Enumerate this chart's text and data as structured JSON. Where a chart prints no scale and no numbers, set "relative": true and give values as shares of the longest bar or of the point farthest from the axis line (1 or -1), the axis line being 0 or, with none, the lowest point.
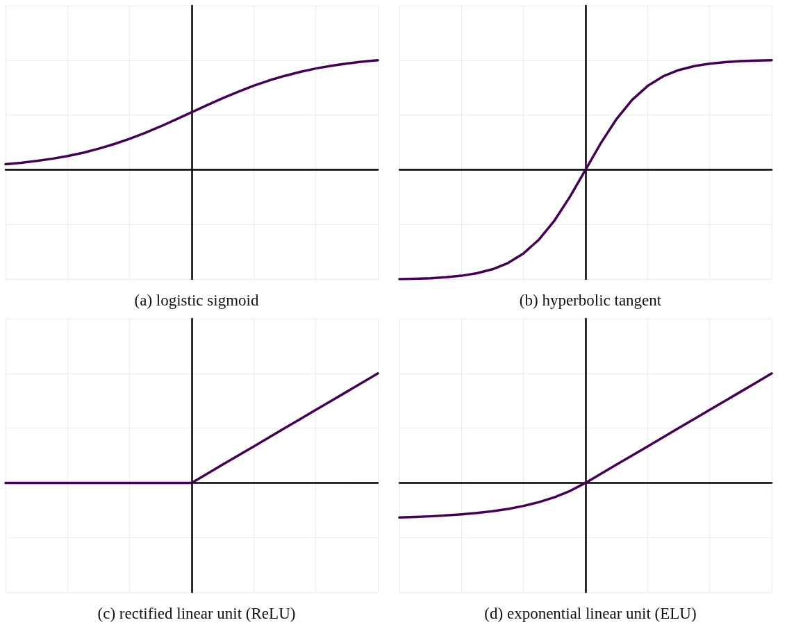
{
  "chart_data": [
    {
      "type": "line",
      "title": "(a) logistic sigmoid",
      "relative": true,
      "tick_labels": false,
      "grid": true,
      "categories": [
        null,
        null,
        null,
        null,
        null,
        null,
        null,
        null,
        null,
        null,
        null,
        null,
        null,
        null,
        null,
        null,
        null,
        null,
        null,
        null,
        null,
        null,
        null,
        null,
        null
      ],
      "series": [
        {
          "color": "#440154",
          "values": [
            0.05,
            0.063,
            0.08,
            0.1,
            0.125,
            0.155,
            0.192,
            0.234,
            0.282,
            0.337,
            0.396,
            0.46,
            0.525,
            0.59,
            0.654,
            0.713,
            0.768,
            0.816,
            0.858,
            0.894,
            0.925,
            0.95,
            0.97,
            0.987,
            1
          ]
        }
      ]
    },
    {
      "type": "line",
      "title": "(b) hyperbolic tangent",
      "relative": true,
      "tick_labels": false,
      "grid": true,
      "categories": [
        null,
        null,
        null,
        null,
        null,
        null,
        null,
        null,
        null,
        null,
        null,
        null,
        null,
        null,
        null,
        null,
        null,
        null,
        null,
        null,
        null,
        null,
        null,
        null,
        null
      ],
      "series": [
        {
          "color": "#440154",
          "values": [
            -1,
            -0.997,
            -0.992,
            -0.983,
            -0.969,
            -0.946,
            -0.91,
            -0.853,
            -0.765,
            -0.638,
            -0.464,
            -0.246,
            0,
            0.246,
            0.464,
            0.638,
            0.765,
            0.853,
            0.91,
            0.946,
            0.969,
            0.983,
            0.992,
            0.997,
            1
          ]
        }
      ]
    },
    {
      "type": "line",
      "title": "(c) rectified linear unit (ReLU)",
      "relative": true,
      "tick_labels": false,
      "grid": true,
      "categories": [
        null,
        null,
        null,
        null,
        null,
        null,
        null,
        null,
        null,
        null,
        null,
        null,
        null,
        null,
        null,
        null,
        null,
        null,
        null,
        null,
        null,
        null,
        null,
        null,
        null
      ],
      "series": [
        {
          "color": "#440154",
          "values": [
            0,
            0,
            0,
            0,
            0,
            0,
            0,
            0,
            0,
            0,
            0,
            0,
            0,
            0.083,
            0.167,
            0.25,
            0.333,
            0.417,
            0.5,
            0.583,
            0.667,
            0.75,
            0.833,
            0.917,
            1
          ]
        }
      ]
    },
    {
      "type": "line",
      "title": "(d) exponential linear unit (ELU)",
      "relative": true,
      "tick_labels": false,
      "grid": true,
      "categories": [
        null,
        null,
        null,
        null,
        null,
        null,
        null,
        null,
        null,
        null,
        null,
        null,
        null,
        null,
        null,
        null,
        null,
        null,
        null,
        null,
        null,
        null,
        null,
        null,
        null
      ],
      "series": [
        {
          "color": "#440154",
          "values": [
            -0.317,
            -0.312,
            -0.306,
            -0.298,
            -0.288,
            -0.275,
            -0.259,
            -0.238,
            -0.211,
            -0.176,
            -0.131,
            -0.074,
            0,
            0.083,
            0.167,
            0.25,
            0.333,
            0.417,
            0.5,
            0.583,
            0.667,
            0.75,
            0.833,
            0.917,
            1
          ]
        }
      ]
    }
  ]
}
